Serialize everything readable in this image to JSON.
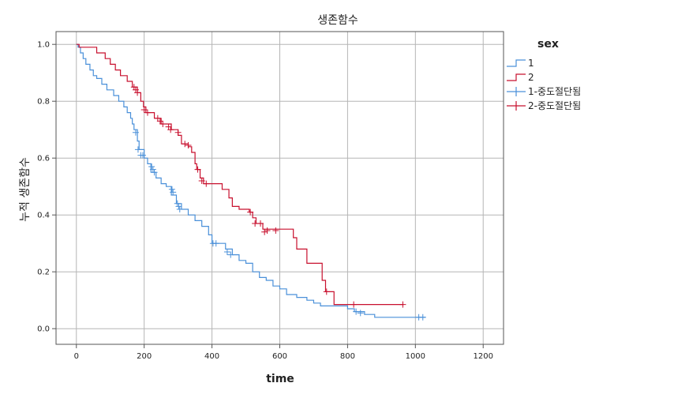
{
  "chart_data": {
    "type": "line",
    "title": "생존함수",
    "xlabel": "time",
    "ylabel": "누적 생존함수",
    "xlim": [
      -60,
      1260
    ],
    "ylim": [
      -0.055,
      1.045
    ],
    "x_ticks": [
      0,
      200,
      400,
      600,
      800,
      1000,
      1200
    ],
    "y_ticks": [
      0.0,
      0.2,
      0.4,
      0.6,
      0.8,
      1.0
    ],
    "x_tick_labels": [
      "0",
      "200",
      "400",
      "600",
      "800",
      "1000",
      "1200"
    ],
    "y_tick_labels": [
      "0.0",
      "0.2",
      "0.4",
      "0.6",
      "0.8",
      "1.0"
    ],
    "grid": true,
    "legend_position": "right",
    "legend": {
      "title": "sex",
      "items": [
        "1",
        "2",
        "1-중도절단됨",
        "2-중도절단됨"
      ]
    },
    "colors": {
      "series_1": "#4a90d9",
      "series_2": "#c8102e",
      "grid": "#b5b5b5",
      "axis": "#555555"
    },
    "series": [
      {
        "name": "1",
        "color": "#4a90d9",
        "steps": [
          [
            0,
            1.0
          ],
          [
            5,
            0.99
          ],
          [
            12,
            0.97
          ],
          [
            20,
            0.95
          ],
          [
            28,
            0.93
          ],
          [
            40,
            0.91
          ],
          [
            50,
            0.89
          ],
          [
            60,
            0.88
          ],
          [
            75,
            0.86
          ],
          [
            90,
            0.84
          ],
          [
            110,
            0.82
          ],
          [
            125,
            0.8
          ],
          [
            140,
            0.78
          ],
          [
            150,
            0.76
          ],
          [
            160,
            0.74
          ],
          [
            165,
            0.72
          ],
          [
            170,
            0.7
          ],
          [
            180,
            0.66
          ],
          [
            185,
            0.63
          ],
          [
            200,
            0.6
          ],
          [
            210,
            0.58
          ],
          [
            220,
            0.55
          ],
          [
            235,
            0.53
          ],
          [
            250,
            0.51
          ],
          [
            265,
            0.5
          ],
          [
            280,
            0.47
          ],
          [
            295,
            0.44
          ],
          [
            310,
            0.42
          ],
          [
            330,
            0.4
          ],
          [
            350,
            0.38
          ],
          [
            370,
            0.36
          ],
          [
            390,
            0.33
          ],
          [
            400,
            0.3
          ],
          [
            420,
            0.3
          ],
          [
            440,
            0.28
          ],
          [
            460,
            0.26
          ],
          [
            480,
            0.24
          ],
          [
            500,
            0.23
          ],
          [
            520,
            0.2
          ],
          [
            540,
            0.18
          ],
          [
            560,
            0.17
          ],
          [
            580,
            0.15
          ],
          [
            600,
            0.14
          ],
          [
            620,
            0.12
          ],
          [
            650,
            0.11
          ],
          [
            680,
            0.1
          ],
          [
            700,
            0.09
          ],
          [
            720,
            0.08
          ],
          [
            800,
            0.07
          ],
          [
            820,
            0.06
          ],
          [
            850,
            0.05
          ],
          [
            880,
            0.04
          ],
          [
            1030,
            0.04
          ]
        ],
        "censored": [
          [
            175,
            0.69
          ],
          [
            182,
            0.63
          ],
          [
            190,
            0.61
          ],
          [
            196,
            0.61
          ],
          [
            222,
            0.57
          ],
          [
            226,
            0.56
          ],
          [
            230,
            0.55
          ],
          [
            282,
            0.49
          ],
          [
            285,
            0.48
          ],
          [
            298,
            0.44
          ],
          [
            302,
            0.43
          ],
          [
            305,
            0.42
          ],
          [
            403,
            0.3
          ],
          [
            412,
            0.3
          ],
          [
            445,
            0.27
          ],
          [
            455,
            0.26
          ],
          [
            825,
            0.06
          ],
          [
            838,
            0.055
          ],
          [
            1010,
            0.04
          ],
          [
            1022,
            0.04
          ]
        ]
      },
      {
        "name": "2",
        "color": "#c8102e",
        "steps": [
          [
            0,
            1.0
          ],
          [
            8,
            0.99
          ],
          [
            60,
            0.97
          ],
          [
            85,
            0.95
          ],
          [
            100,
            0.93
          ],
          [
            115,
            0.91
          ],
          [
            130,
            0.89
          ],
          [
            150,
            0.87
          ],
          [
            165,
            0.85
          ],
          [
            180,
            0.83
          ],
          [
            190,
            0.8
          ],
          [
            198,
            0.78
          ],
          [
            205,
            0.76
          ],
          [
            230,
            0.74
          ],
          [
            250,
            0.72
          ],
          [
            280,
            0.7
          ],
          [
            300,
            0.68
          ],
          [
            310,
            0.65
          ],
          [
            330,
            0.64
          ],
          [
            340,
            0.62
          ],
          [
            350,
            0.58
          ],
          [
            355,
            0.56
          ],
          [
            365,
            0.53
          ],
          [
            375,
            0.51
          ],
          [
            430,
            0.49
          ],
          [
            450,
            0.46
          ],
          [
            460,
            0.43
          ],
          [
            480,
            0.42
          ],
          [
            510,
            0.41
          ],
          [
            520,
            0.39
          ],
          [
            530,
            0.37
          ],
          [
            550,
            0.35
          ],
          [
            640,
            0.32
          ],
          [
            650,
            0.28
          ],
          [
            680,
            0.23
          ],
          [
            725,
            0.17
          ],
          [
            735,
            0.13
          ],
          [
            760,
            0.085
          ],
          [
            965,
            0.085
          ]
        ],
        "censored": [
          [
            170,
            0.85
          ],
          [
            175,
            0.84
          ],
          [
            180,
            0.83
          ],
          [
            200,
            0.77
          ],
          [
            210,
            0.76
          ],
          [
            240,
            0.74
          ],
          [
            247,
            0.73
          ],
          [
            255,
            0.72
          ],
          [
            272,
            0.71
          ],
          [
            278,
            0.7
          ],
          [
            300,
            0.69
          ],
          [
            320,
            0.65
          ],
          [
            330,
            0.645
          ],
          [
            358,
            0.56
          ],
          [
            370,
            0.52
          ],
          [
            383,
            0.51
          ],
          [
            513,
            0.41
          ],
          [
            527,
            0.37
          ],
          [
            543,
            0.37
          ],
          [
            555,
            0.34
          ],
          [
            563,
            0.345
          ],
          [
            588,
            0.345
          ],
          [
            738,
            0.13
          ],
          [
            818,
            0.085
          ],
          [
            963,
            0.085
          ]
        ]
      }
    ]
  }
}
